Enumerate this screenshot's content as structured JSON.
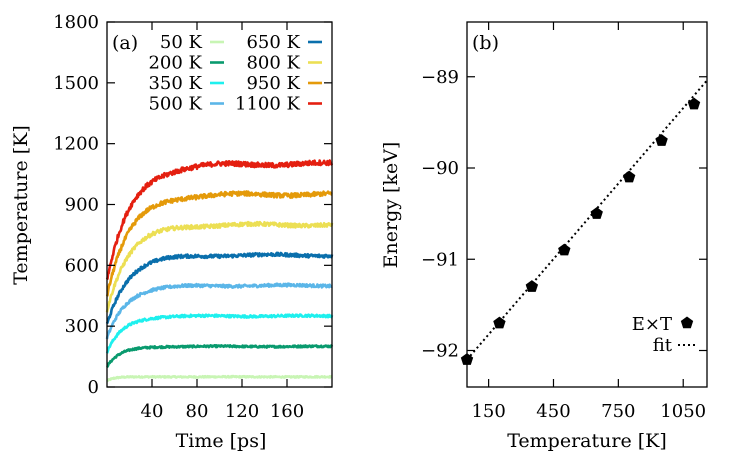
{
  "chart_data": [
    {
      "panel_label": "(a)",
      "type": "line",
      "xlabel": "Time [ps]",
      "ylabel": "Temperature [K]",
      "xlim": [
        0,
        200
      ],
      "ylim": [
        0,
        1800
      ],
      "xticks": [
        40,
        80,
        120,
        160
      ],
      "yticks": [
        0,
        300,
        600,
        900,
        1200,
        1500,
        1800
      ],
      "xtick_labels": [
        "40",
        "80",
        "120",
        "160"
      ],
      "ytick_labels": [
        "0",
        "300",
        "600",
        "900",
        "1200",
        "1500",
        "1800"
      ],
      "legend_position": "top-right",
      "series": [
        {
          "name": "50 K",
          "target": 50,
          "start": 30,
          "tau": 6,
          "color": "#c8f5b4"
        },
        {
          "name": "200 K",
          "target": 200,
          "start": 100,
          "tau": 12,
          "color": "#099a6e"
        },
        {
          "name": "350 K",
          "target": 350,
          "start": 170,
          "tau": 14,
          "color": "#1ef0ee"
        },
        {
          "name": "500 K",
          "target": 500,
          "start": 240,
          "tau": 16,
          "color": "#5bb6e8"
        },
        {
          "name": "650 K",
          "target": 650,
          "start": 310,
          "tau": 18,
          "color": "#0a6fac"
        },
        {
          "name": "800 K",
          "target": 800,
          "start": 380,
          "tau": 19,
          "color": "#ecdf54"
        },
        {
          "name": "950 K",
          "target": 950,
          "start": 450,
          "tau": 20,
          "color": "#e49a0a"
        },
        {
          "name": "1100 K",
          "target": 1100,
          "start": 520,
          "tau": 21,
          "color": "#e41f10"
        }
      ]
    },
    {
      "panel_label": "(b)",
      "type": "scatter",
      "xlabel": "Temperature [K]",
      "ylabel": "Energy [keV]",
      "xlim": [
        50,
        1160
      ],
      "ylim": [
        -92.4,
        -88.4
      ],
      "xticks": [
        150,
        450,
        750,
        1050
      ],
      "yticks": [
        -92,
        -91,
        -90,
        -89
      ],
      "xtick_labels": [
        "150",
        "450",
        "750",
        "1050"
      ],
      "ytick_labels": [
        "−92",
        "−91",
        "−90",
        "−89"
      ],
      "legend_position": "bottom-right",
      "series": [
        {
          "name": "E×T",
          "marker": "pentagon",
          "x": [
            50,
            200,
            350,
            500,
            650,
            800,
            950,
            1100
          ],
          "y": [
            -92.1,
            -91.7,
            -91.3,
            -90.9,
            -90.5,
            -90.1,
            -89.7,
            -89.3
          ]
        },
        {
          "name": "fit",
          "style": "dotted",
          "x": [
            50,
            1160
          ],
          "y": [
            -92.1,
            -89.04
          ]
        }
      ]
    }
  ]
}
